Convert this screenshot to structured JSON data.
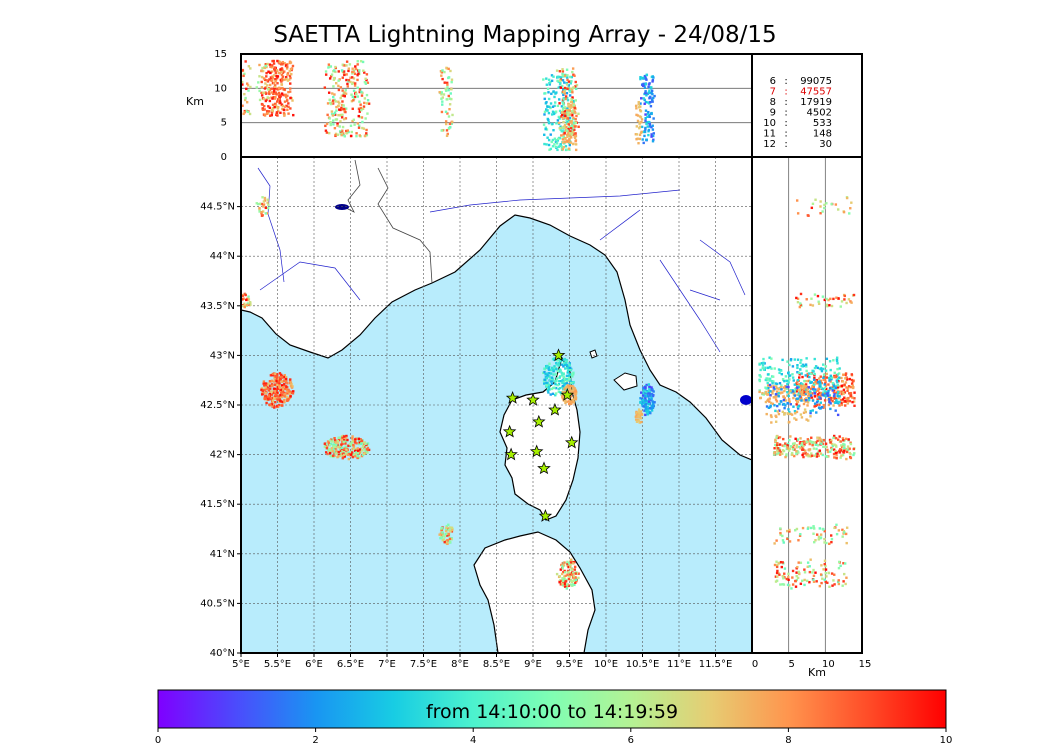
{
  "title": "SAETTA Lightning Mapping Array - 24/08/15",
  "map": {
    "lon_ticks": [
      {
        "v": 5,
        "label": "5°E"
      },
      {
        "v": 5.5,
        "label": "5.5°E"
      },
      {
        "v": 6,
        "label": "6°E"
      },
      {
        "v": 6.5,
        "label": "6.5°E"
      },
      {
        "v": 7,
        "label": "7°E"
      },
      {
        "v": 7.5,
        "label": "7.5°E"
      },
      {
        "v": 8,
        "label": "8°E"
      },
      {
        "v": 8.5,
        "label": "8.5°E"
      },
      {
        "v": 9,
        "label": "9°E"
      },
      {
        "v": 9.5,
        "label": "9.5°E"
      },
      {
        "v": 10,
        "label": "10°E"
      },
      {
        "v": 10.5,
        "label": "10.5°E"
      },
      {
        "v": 11,
        "label": "11°E"
      },
      {
        "v": 11.5,
        "label": "11.5°E"
      }
    ],
    "lat_ticks": [
      {
        "v": 40,
        "label": "40°N"
      },
      {
        "v": 40.5,
        "label": "40.5°N"
      },
      {
        "v": 41,
        "label": "41°N"
      },
      {
        "v": 41.5,
        "label": "41.5°N"
      },
      {
        "v": 42,
        "label": "42°N"
      },
      {
        "v": 42.5,
        "label": "42.5°N"
      },
      {
        "v": 43,
        "label": "43°N"
      },
      {
        "v": 43.5,
        "label": "43.5°N"
      },
      {
        "v": 44,
        "label": "44°N"
      },
      {
        "v": 44.5,
        "label": "44.5°N"
      }
    ],
    "lon_range": [
      5,
      12
    ],
    "lat_range": [
      40,
      45
    ],
    "sea_color": "#b8ecfc",
    "land_color": "#ffffff",
    "stations": [
      {
        "lon": 9.35,
        "lat": 43.0
      },
      {
        "lon": 8.72,
        "lat": 42.57
      },
      {
        "lon": 9.0,
        "lat": 42.55
      },
      {
        "lon": 9.47,
        "lat": 42.6
      },
      {
        "lon": 9.3,
        "lat": 42.45
      },
      {
        "lon": 9.08,
        "lat": 42.33
      },
      {
        "lon": 8.68,
        "lat": 42.23
      },
      {
        "lon": 9.53,
        "lat": 42.12
      },
      {
        "lon": 9.05,
        "lat": 42.03
      },
      {
        "lon": 8.7,
        "lat": 42.0
      },
      {
        "lon": 9.15,
        "lat": 41.86
      },
      {
        "lon": 9.17,
        "lat": 41.38
      }
    ]
  },
  "alt_panel": {
    "ylabel": "Km",
    "yticks": [
      {
        "v": 0,
        "label": "0"
      },
      {
        "v": 5,
        "label": "5"
      },
      {
        "v": 10,
        "label": "10"
      },
      {
        "v": 15,
        "label": "15"
      }
    ],
    "range": [
      0,
      15
    ]
  },
  "side_panel": {
    "xlabel": "Km",
    "xticks": [
      {
        "v": 0,
        "label": "0"
      },
      {
        "v": 5,
        "label": "5"
      },
      {
        "v": 10,
        "label": "10"
      },
      {
        "v": 15,
        "label": "15"
      }
    ],
    "range": [
      0,
      15
    ]
  },
  "counts": [
    {
      "alt": "6",
      "sep": ":",
      "count": "99075",
      "color": "#000000"
    },
    {
      "alt": "7",
      "sep": ":",
      "count": "47557",
      "color": "#dd0000"
    },
    {
      "alt": "8",
      "sep": ":",
      "count": "17919",
      "color": "#000000"
    },
    {
      "alt": "9",
      "sep": ":",
      "count": "4502",
      "color": "#000000"
    },
    {
      "alt": "10",
      "sep": ":",
      "count": "533",
      "color": "#000000"
    },
    {
      "alt": "11",
      "sep": ":",
      "count": "148",
      "color": "#000000"
    },
    {
      "alt": "12",
      "sep": ":",
      "count": "30",
      "color": "#000000"
    }
  ],
  "colorbar": {
    "label": "from 14:10:00 to 14:19:59",
    "ticks": [
      {
        "v": 0,
        "label": "0"
      },
      {
        "v": 2,
        "label": "2"
      },
      {
        "v": 4,
        "label": "4"
      },
      {
        "v": 6,
        "label": "6"
      },
      {
        "v": 8,
        "label": "8"
      },
      {
        "v": 10,
        "label": "10"
      }
    ],
    "range": [
      0,
      10
    ],
    "colormap": [
      "#7f00ff",
      "#4b4cfc",
      "#1995f2",
      "#18cde3",
      "#4cf2ce",
      "#80feb3",
      "#b4f294",
      "#e6cd73",
      "#ff954e",
      "#ff4d28",
      "#ff0000"
    ]
  },
  "clusters": [
    {
      "lon": 5.5,
      "lat": 42.65,
      "rx": 0.22,
      "ry": 0.18,
      "n": 240,
      "tmin": 7.0,
      "tmax": 10,
      "alt": [
        6,
        14
      ]
    },
    {
      "lon": 6.45,
      "lat": 42.07,
      "rx": 0.32,
      "ry": 0.12,
      "n": 240,
      "tmin": 4.5,
      "tmax": 10,
      "alt": [
        3,
        14
      ]
    },
    {
      "lon": 7.82,
      "lat": 41.2,
      "rx": 0.1,
      "ry": 0.1,
      "n": 60,
      "tmin": 4.5,
      "tmax": 9.5,
      "alt": [
        3,
        13
      ]
    },
    {
      "lon": 9.35,
      "lat": 42.78,
      "rx": 0.22,
      "ry": 0.2,
      "n": 200,
      "tmin": 2.0,
      "tmax": 5.0,
      "alt": [
        1,
        12
      ]
    },
    {
      "lon": 9.5,
      "lat": 42.6,
      "rx": 0.1,
      "ry": 0.1,
      "n": 90,
      "tmin": 7.2,
      "tmax": 8.0,
      "alt": [
        1,
        8
      ]
    },
    {
      "lon": 10.57,
      "lat": 42.55,
      "rx": 0.1,
      "ry": 0.16,
      "n": 110,
      "tmin": 0.8,
      "tmax": 3.5,
      "alt": [
        2,
        12
      ]
    },
    {
      "lon": 10.45,
      "lat": 42.38,
      "rx": 0.05,
      "ry": 0.08,
      "n": 30,
      "tmin": 7.0,
      "tmax": 7.8,
      "alt": [
        2,
        8
      ]
    },
    {
      "lon": 9.48,
      "lat": 40.8,
      "rx": 0.15,
      "ry": 0.15,
      "n": 110,
      "tmin": 4.5,
      "tmax": 10,
      "alt": [
        3,
        13
      ]
    },
    {
      "lon": 5.3,
      "lat": 44.5,
      "rx": 0.1,
      "ry": 0.1,
      "n": 25,
      "tmin": 5,
      "tmax": 10,
      "alt": [
        6,
        14
      ]
    },
    {
      "lon": 5.05,
      "lat": 43.55,
      "rx": 0.1,
      "ry": 0.07,
      "n": 40,
      "tmin": 5,
      "tmax": 10,
      "alt": [
        6,
        14
      ]
    }
  ]
}
